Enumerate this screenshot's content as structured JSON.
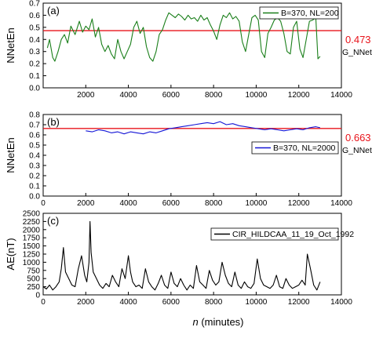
{
  "x_axis_label": {
    "prefix": "n",
    "suffix": " (minutes)"
  },
  "chart_data": [
    {
      "type": "line",
      "panel_label": "(a)",
      "ylabel": "NNetEn",
      "xlim": [
        0,
        14000
      ],
      "ylim": [
        0.0,
        0.7
      ],
      "xticks": [
        0,
        2000,
        4000,
        6000,
        8000,
        10000,
        12000,
        14000
      ],
      "xtick_labels": [
        "",
        "2000",
        "4000",
        "6000",
        "8000",
        "10000",
        "12000",
        "14000"
      ],
      "yticks": [
        0.0,
        0.1,
        0.2,
        0.3,
        0.4,
        0.5,
        0.6,
        0.7
      ],
      "ytick_labels": [
        "0.0",
        "0.1",
        "0.2",
        "0.3",
        "0.4",
        "0.5",
        "0.6",
        "0.7"
      ],
      "legend": {
        "label": "B=370, NL=200",
        "placement": "top-right"
      },
      "reference_line": {
        "value": 0.473,
        "value_label": "0.473",
        "name": "G_NNetEn",
        "color": "#e8141b"
      },
      "series": [
        {
          "name": "B=370, NL=200",
          "color": "#1a7f1a",
          "x": [
            200,
            300,
            450,
            550,
            700,
            850,
            1000,
            1150,
            1300,
            1500,
            1700,
            1850,
            2000,
            2150,
            2300,
            2450,
            2600,
            2750,
            2900,
            3050,
            3200,
            3350,
            3500,
            3650,
            3800,
            3950,
            4100,
            4250,
            4400,
            4550,
            4700,
            4850,
            5000,
            5150,
            5300,
            5450,
            5600,
            5750,
            5900,
            6050,
            6200,
            6350,
            6500,
            6650,
            6800,
            6950,
            7100,
            7250,
            7400,
            7550,
            7700,
            7850,
            8000,
            8150,
            8300,
            8450,
            8600,
            8750,
            8900,
            9050,
            9200,
            9350,
            9500,
            9650,
            9800,
            9950,
            10100,
            10250,
            10400,
            10550,
            10700,
            10850,
            11000,
            11150,
            11300,
            11450,
            11600,
            11750,
            11900,
            12050,
            12200,
            12350,
            12500,
            12650,
            12800,
            12900,
            13000
          ],
          "y": [
            0.33,
            0.4,
            0.25,
            0.22,
            0.3,
            0.4,
            0.44,
            0.37,
            0.51,
            0.44,
            0.55,
            0.46,
            0.51,
            0.48,
            0.57,
            0.42,
            0.5,
            0.36,
            0.3,
            0.35,
            0.28,
            0.24,
            0.4,
            0.3,
            0.24,
            0.3,
            0.36,
            0.5,
            0.55,
            0.45,
            0.5,
            0.34,
            0.25,
            0.22,
            0.3,
            0.44,
            0.48,
            0.56,
            0.62,
            0.6,
            0.58,
            0.61,
            0.59,
            0.56,
            0.6,
            0.57,
            0.58,
            0.55,
            0.6,
            0.56,
            0.58,
            0.52,
            0.47,
            0.4,
            0.52,
            0.6,
            0.58,
            0.62,
            0.57,
            0.59,
            0.55,
            0.38,
            0.3,
            0.44,
            0.58,
            0.6,
            0.56,
            0.3,
            0.25,
            0.45,
            0.5,
            0.56,
            0.58,
            0.55,
            0.45,
            0.3,
            0.28,
            0.5,
            0.55,
            0.32,
            0.25,
            0.4,
            0.55,
            0.56,
            0.58,
            0.24,
            0.26
          ]
        }
      ]
    },
    {
      "type": "line",
      "panel_label": "(b)",
      "ylabel": "NNetEn",
      "xlim": [
        0,
        14000
      ],
      "ylim": [
        0.0,
        0.8
      ],
      "xticks": [
        0,
        2000,
        4000,
        6000,
        8000,
        10000,
        12000,
        14000
      ],
      "xtick_labels": [
        "0",
        "2000",
        "4000",
        "6000",
        "8000",
        "10000",
        "12000",
        "14000"
      ],
      "yticks": [
        0.0,
        0.1,
        0.2,
        0.3,
        0.4,
        0.5,
        0.6,
        0.7,
        0.8
      ],
      "ytick_labels": [
        "0.0",
        "0.1",
        "0.2",
        "0.3",
        "0.4",
        "0.5",
        "0.6",
        "0.7",
        "0.8"
      ],
      "legend": {
        "label": "B=370, NL=2000",
        "placement": "right"
      },
      "reference_line": {
        "value": 0.663,
        "value_label": "0.663",
        "name": "G_NNetEn",
        "color": "#e8141b"
      },
      "series": [
        {
          "name": "B=370, NL=2000",
          "color": "#1515d6",
          "x": [
            2000,
            2300,
            2600,
            2900,
            3200,
            3500,
            3800,
            4100,
            4400,
            4700,
            5000,
            5300,
            5600,
            5900,
            6200,
            6500,
            6800,
            7100,
            7400,
            7700,
            8000,
            8300,
            8600,
            8900,
            9200,
            9500,
            9800,
            10100,
            10400,
            10700,
            11000,
            11300,
            11600,
            11900,
            12200,
            12500,
            12800,
            13000
          ],
          "y": [
            0.64,
            0.63,
            0.65,
            0.64,
            0.62,
            0.63,
            0.61,
            0.63,
            0.62,
            0.61,
            0.63,
            0.62,
            0.64,
            0.66,
            0.67,
            0.68,
            0.69,
            0.7,
            0.71,
            0.72,
            0.71,
            0.73,
            0.7,
            0.71,
            0.69,
            0.68,
            0.67,
            0.66,
            0.65,
            0.66,
            0.65,
            0.64,
            0.65,
            0.66,
            0.65,
            0.67,
            0.68,
            0.67
          ]
        }
      ]
    },
    {
      "type": "line",
      "panel_label": "(c)",
      "ylabel": "AE(nT)",
      "xlim": [
        0,
        14000
      ],
      "ylim": [
        0,
        2500
      ],
      "xticks": [
        0,
        2000,
        4000,
        6000,
        8000,
        10000,
        12000,
        14000
      ],
      "xtick_labels": [
        "0",
        "2000",
        "4000",
        "6000",
        "8000",
        "10000",
        "12000",
        "14000"
      ],
      "yticks": [
        0,
        250,
        500,
        750,
        1000,
        1250,
        1500,
        1750,
        2000,
        2250,
        2500
      ],
      "ytick_labels": [
        "0",
        "250",
        "500",
        "750",
        "1000",
        "1250",
        "1500",
        "1750",
        "2000",
        "2250",
        "2500"
      ],
      "legend": {
        "label": "CIR_HILDCAA_11_19_Oct_1992",
        "placement": "top-right"
      },
      "series": [
        {
          "name": "CIR_HILDCAA_11_19_Oct_1992",
          "color": "#000000",
          "x": [
            0,
            150,
            300,
            450,
            600,
            750,
            850,
            950,
            1050,
            1200,
            1350,
            1500,
            1650,
            1800,
            1950,
            2050,
            2150,
            2200,
            2250,
            2350,
            2500,
            2650,
            2800,
            2950,
            3100,
            3250,
            3400,
            3550,
            3700,
            3850,
            4000,
            4100,
            4200,
            4350,
            4500,
            4650,
            4800,
            4950,
            5100,
            5250,
            5400,
            5550,
            5700,
            5850,
            6000,
            6150,
            6300,
            6450,
            6600,
            6750,
            6900,
            7050,
            7200,
            7350,
            7500,
            7650,
            7800,
            7950,
            8100,
            8250,
            8400,
            8550,
            8700,
            8850,
            9000,
            9150,
            9300,
            9450,
            9600,
            9750,
            9900,
            10050,
            10200,
            10350,
            10500,
            10650,
            10800,
            10950,
            11100,
            11250,
            11400,
            11550,
            11700,
            11850,
            12000,
            12150,
            12300,
            12400,
            12550,
            12700,
            12850,
            13000
          ],
          "y": [
            250,
            180,
            300,
            150,
            250,
            400,
            800,
            1450,
            700,
            500,
            300,
            250,
            800,
            1200,
            600,
            400,
            1000,
            2250,
            1300,
            700,
            500,
            300,
            200,
            350,
            250,
            600,
            400,
            250,
            800,
            500,
            1200,
            700,
            400,
            250,
            300,
            200,
            800,
            400,
            250,
            150,
            350,
            600,
            300,
            200,
            700,
            350,
            250,
            500,
            300,
            150,
            300,
            200,
            900,
            400,
            300,
            200,
            750,
            450,
            300,
            400,
            1000,
            600,
            350,
            250,
            700,
            300,
            200,
            400,
            250,
            200,
            350,
            1100,
            500,
            300,
            250,
            200,
            300,
            600,
            250,
            200,
            500,
            300,
            200,
            250,
            300,
            450,
            300,
            1250,
            800,
            300,
            150,
            400
          ]
        }
      ]
    }
  ]
}
